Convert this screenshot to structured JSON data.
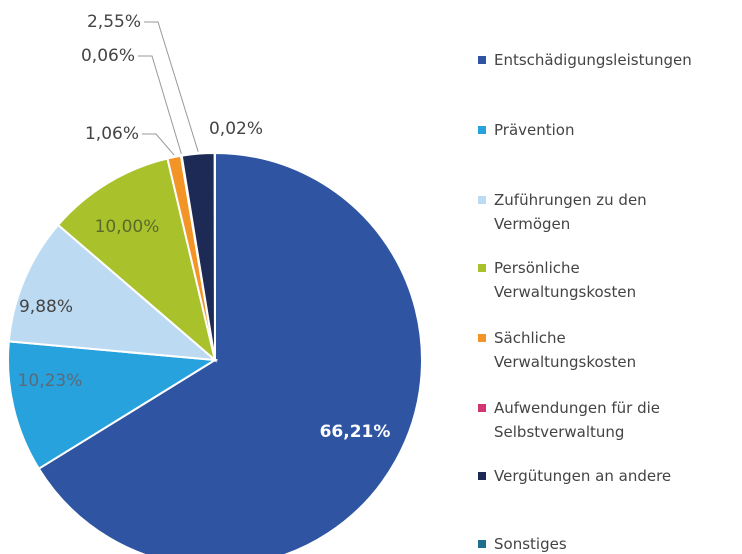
{
  "chart_data": {
    "type": "pie",
    "categories": [
      "Entschädigungsleistungen",
      "Prävention",
      "Zuführungen zu den Vermögen",
      "Persönliche Verwaltungskosten",
      "Sächliche Verwaltungskosten",
      "Aufwendungen für die Selbstverwaltung",
      "Vergütungen an andere",
      "Sonstiges"
    ],
    "values": [
      66.21,
      10.23,
      9.88,
      10.0,
      1.06,
      0.06,
      2.55,
      0.02
    ],
    "value_labels": [
      "66,21%",
      "10,23%",
      "9,88%",
      "10,00%",
      "1,06%",
      "0,06%",
      "2,55%",
      "0,02%"
    ],
    "colors": [
      "#2f55a2",
      "#28a2dc",
      "#bcdaf1",
      "#a9c22c",
      "#f39526",
      "#d2356f",
      "#1e2a56",
      "#1f6e8a"
    ],
    "legend": "right"
  }
}
